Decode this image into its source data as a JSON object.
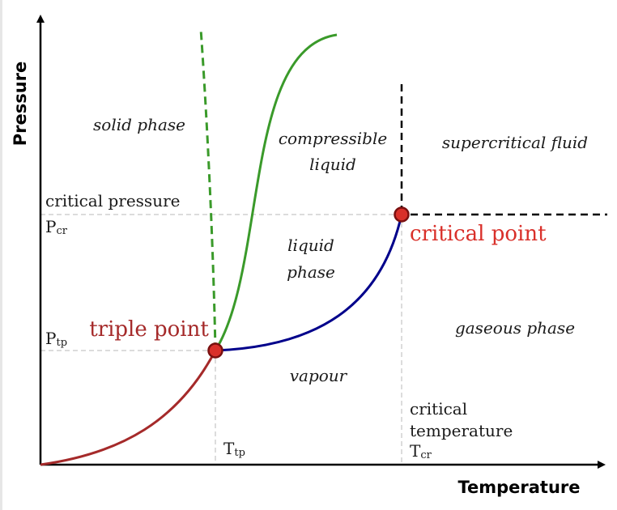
{
  "axes": {
    "x_title": "Temperature",
    "y_title": "Pressure"
  },
  "regions": {
    "solid": "solid phase",
    "compressible_line1": "compressible",
    "compressible_line2": "liquid",
    "supercritical": "supercritical fluid",
    "liquid_line1": "liquid",
    "liquid_line2": "phase",
    "gaseous": "gaseous phase",
    "vapour": "vapour"
  },
  "points": {
    "triple": "triple point",
    "critical": "critical point"
  },
  "labels": {
    "critical_pressure": "critical pressure",
    "p_cr_main": "P",
    "p_cr_sub": "cr",
    "p_tp_main": "P",
    "p_tp_sub": "tp",
    "t_tp_main": "T",
    "t_tp_sub": "tp",
    "critical_temperature_line1": "critical",
    "critical_temperature_line2": "temperature",
    "t_cr_main": "T",
    "t_cr_sub": "cr"
  },
  "colors": {
    "sublimation_curve": "#a52a2a",
    "vaporization_curve": "#00008b",
    "melting_curve": "#3a9a2a",
    "point_fill": "#d9302a",
    "point_stroke": "#7a1010",
    "triple_label": "#a52a2a",
    "critical_label": "#d9302a",
    "guide": "#d0d0d0"
  }
}
